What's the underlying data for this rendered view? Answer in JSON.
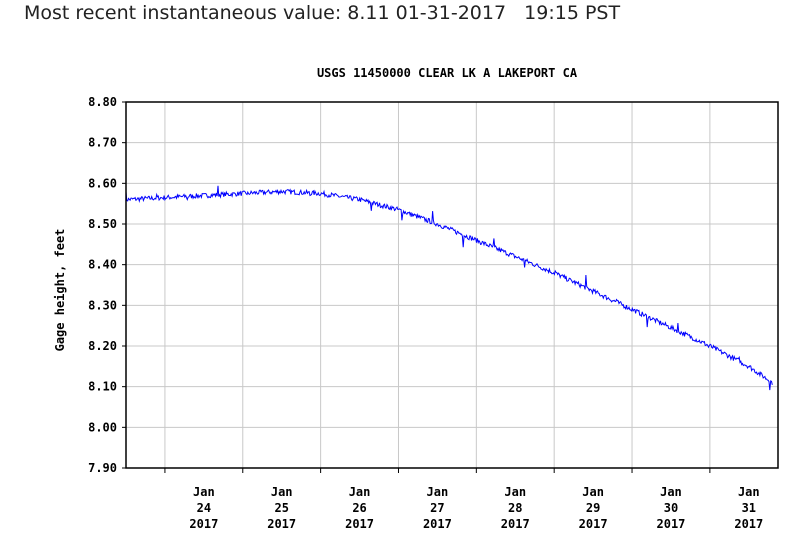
{
  "headline": "Most recent instantaneous value: 8.11 01-31-2017   19:15 PST",
  "chart_data": {
    "type": "line",
    "title": "USGS 11450000 CLEAR LK A LAKEPORT CA",
    "xlabel": "",
    "ylabel": "Gage height, feet",
    "ylim": [
      7.9,
      8.8
    ],
    "xlim": [
      "2017-01-23T12:00",
      "2017-01-31T21:00"
    ],
    "y_ticks": [
      "8.80",
      "8.70",
      "8.60",
      "8.50",
      "8.40",
      "8.30",
      "8.20",
      "8.10",
      "8.00",
      "7.90"
    ],
    "x_ticks": [
      {
        "month": "Jan",
        "day": "24",
        "year": "2017"
      },
      {
        "month": "Jan",
        "day": "25",
        "year": "2017"
      },
      {
        "month": "Jan",
        "day": "26",
        "year": "2017"
      },
      {
        "month": "Jan",
        "day": "27",
        "year": "2017"
      },
      {
        "month": "Jan",
        "day": "28",
        "year": "2017"
      },
      {
        "month": "Jan",
        "day": "29",
        "year": "2017"
      },
      {
        "month": "Jan",
        "day": "30",
        "year": "2017"
      },
      {
        "month": "Jan",
        "day": "31",
        "year": "2017"
      }
    ],
    "grid": true,
    "line_color": "#0000ff",
    "series": [
      {
        "x": [
          "2017-01-23T12:00",
          "2017-01-24T00:00",
          "2017-01-24T12:00",
          "2017-01-25T00:00",
          "2017-01-25T12:00",
          "2017-01-26T00:00",
          "2017-01-26T12:00",
          "2017-01-27T00:00",
          "2017-01-27T12:00",
          "2017-01-28T00:00",
          "2017-01-28T12:00",
          "2017-01-29T00:00",
          "2017-01-29T12:00",
          "2017-01-30T00:00",
          "2017-01-30T12:00",
          "2017-01-31T00:00",
          "2017-01-31T12:00",
          "2017-01-31T19:15"
        ],
        "y": [
          8.56,
          8.565,
          8.57,
          8.575,
          8.58,
          8.575,
          8.56,
          8.535,
          8.5,
          8.46,
          8.42,
          8.38,
          8.335,
          8.29,
          8.245,
          8.2,
          8.15,
          8.11
        ]
      }
    ]
  }
}
